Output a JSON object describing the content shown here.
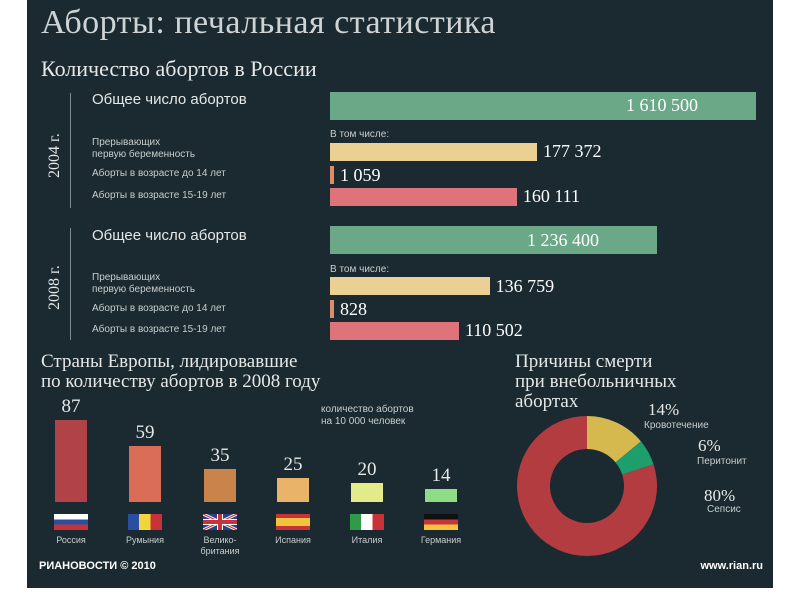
{
  "title": "Аборты: печальная статистика",
  "subtitle": "Количество абортов в России",
  "colors": {
    "total": "#6aa888",
    "first": "#ead193",
    "under14": "#e08a66",
    "teen": "#de7379"
  },
  "russia": {
    "included_label": "В том числе:",
    "years": [
      {
        "year": "2004 г.",
        "total_label": "Общее число абортов",
        "total_value": 1610500,
        "total_text": "1 610 500",
        "first_label_1": "Прерывающих",
        "first_label_2": "первую беременность",
        "first_value": 177372,
        "first_text": "177 372",
        "under14_label": "Аборты в возрасте до 14 лет",
        "under14_value": 1059,
        "under14_text": "1 059",
        "teen_label": "Аборты в возрасте 15-19 лет",
        "teen_value": 160111,
        "teen_text": "160 111"
      },
      {
        "year": "2008 г.",
        "total_label": "Общее число  абортов",
        "total_value": 1236400,
        "total_text": "1 236 400",
        "first_label_1": "Прерывающих",
        "first_label_2": "первую беременность",
        "first_value": 136759,
        "first_text": "136 759",
        "under14_label": "Аборты в возрасте до 14 лет",
        "under14_value": 828,
        "under14_text": "828",
        "teen_label": "Аборты в возрасте 15-19 лет",
        "teen_value": 110502,
        "teen_text": "110 502"
      }
    ]
  },
  "europe": {
    "title_line1": "Страны Европы, лидировавшие",
    "title_line2": "по количеству абортов в 2008 году",
    "note_line1": "количество абортов",
    "note_line2": "на 10 000 человек"
  },
  "deaths": {
    "title_line1": "Причины смерти",
    "title_line2": "при внебольничных",
    "title_line3": "абортах"
  },
  "chart_data": [
    {
      "type": "bar",
      "title": "Количество абортов в России",
      "categories": [
        "Общее число абортов",
        "Прерывающих первую беременность",
        "Аборты в возрасте до 14 лет",
        "Аборты в возрасте 15-19 лет"
      ],
      "series": [
        {
          "name": "2004 г.",
          "values": [
            1610500,
            177372,
            1059,
            160111
          ]
        },
        {
          "name": "2008 г.",
          "values": [
            1236400,
            136759,
            828,
            110502
          ]
        }
      ]
    },
    {
      "type": "bar",
      "title": "Страны Европы, лидировавшие по количеству абортов в 2008 году",
      "ylabel": "количество абортов на 10 000 человек",
      "categories": [
        "Россия",
        "Румыния",
        "Велико-британия",
        "Испания",
        "Италия",
        "Германия"
      ],
      "values": [
        87,
        59,
        35,
        25,
        20,
        14
      ],
      "colors": [
        "#b04248",
        "#d96d58",
        "#c9834b",
        "#e9b36a",
        "#e2ea8a",
        "#8fdc86"
      ]
    },
    {
      "type": "pie",
      "title": "Причины смерти при внебольничных абортах",
      "categories": [
        "Кровотечение",
        "Перитонит",
        "Сепсис"
      ],
      "values": [
        14,
        6,
        80
      ],
      "value_texts": [
        "14%",
        "6%",
        "80%"
      ],
      "colors": [
        "#d5b94e",
        "#1d9e6c",
        "#b23c3f"
      ]
    }
  ],
  "footer": {
    "logo": "РИАНОВОСТИ © 2010",
    "url": "www.rian.ru"
  }
}
